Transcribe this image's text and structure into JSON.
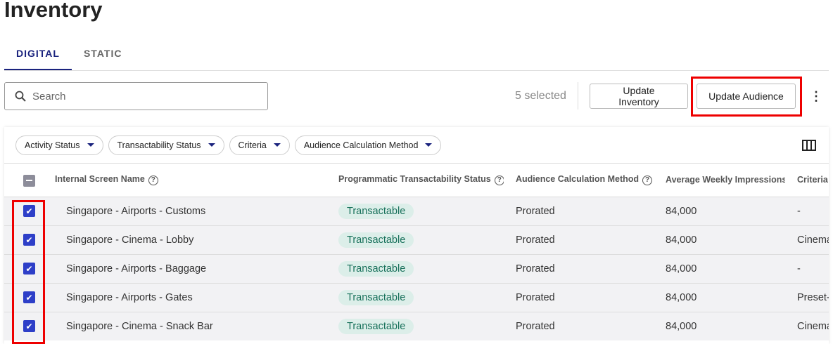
{
  "title": "Inventory",
  "tabs": [
    {
      "label": "DIGITAL",
      "active": true
    },
    {
      "label": "STATIC",
      "active": false
    }
  ],
  "search": {
    "placeholder": "Search",
    "value": ""
  },
  "selected_text": "5 selected",
  "buttons": {
    "update_inventory": "Update Inventory",
    "update_audience": "Update Audience",
    "more": "⋮"
  },
  "filters": [
    "Activity Status",
    "Transactability Status",
    "Criteria",
    "Audience Calculation Method"
  ],
  "columns": [
    "Internal Screen Name",
    "Programmatic Transactability Status",
    "Audience Calculation Method",
    "Average Weekly Impressions",
    "Criteria"
  ],
  "rows": [
    {
      "name": "Singapore - Airports - Customs",
      "status": "Transactable",
      "method": "Prorated",
      "impressions": "84,000",
      "criteria": "-",
      "checked": true
    },
    {
      "name": "Singapore - Cinema - Lobby",
      "status": "Transactable",
      "method": "Prorated",
      "impressions": "84,000",
      "criteria": "Cinema",
      "checked": true
    },
    {
      "name": "Singapore - Airports - Baggage",
      "status": "Transactable",
      "method": "Prorated",
      "impressions": "84,000",
      "criteria": "-",
      "checked": true
    },
    {
      "name": "Singapore - Airports - Gates",
      "status": "Transactable",
      "method": "Prorated",
      "impressions": "84,000",
      "criteria": "Preset-",
      "checked": true
    },
    {
      "name": "Singapore - Cinema - Snack Bar",
      "status": "Transactable",
      "method": "Prorated",
      "impressions": "84,000",
      "criteria": "Cinema",
      "checked": true
    }
  ],
  "colors": {
    "accent": "#1a237e",
    "checkbox": "#2e3fc8",
    "highlight": "#e00000",
    "badge_bg": "#dceee9",
    "badge_text": "#17705a"
  }
}
